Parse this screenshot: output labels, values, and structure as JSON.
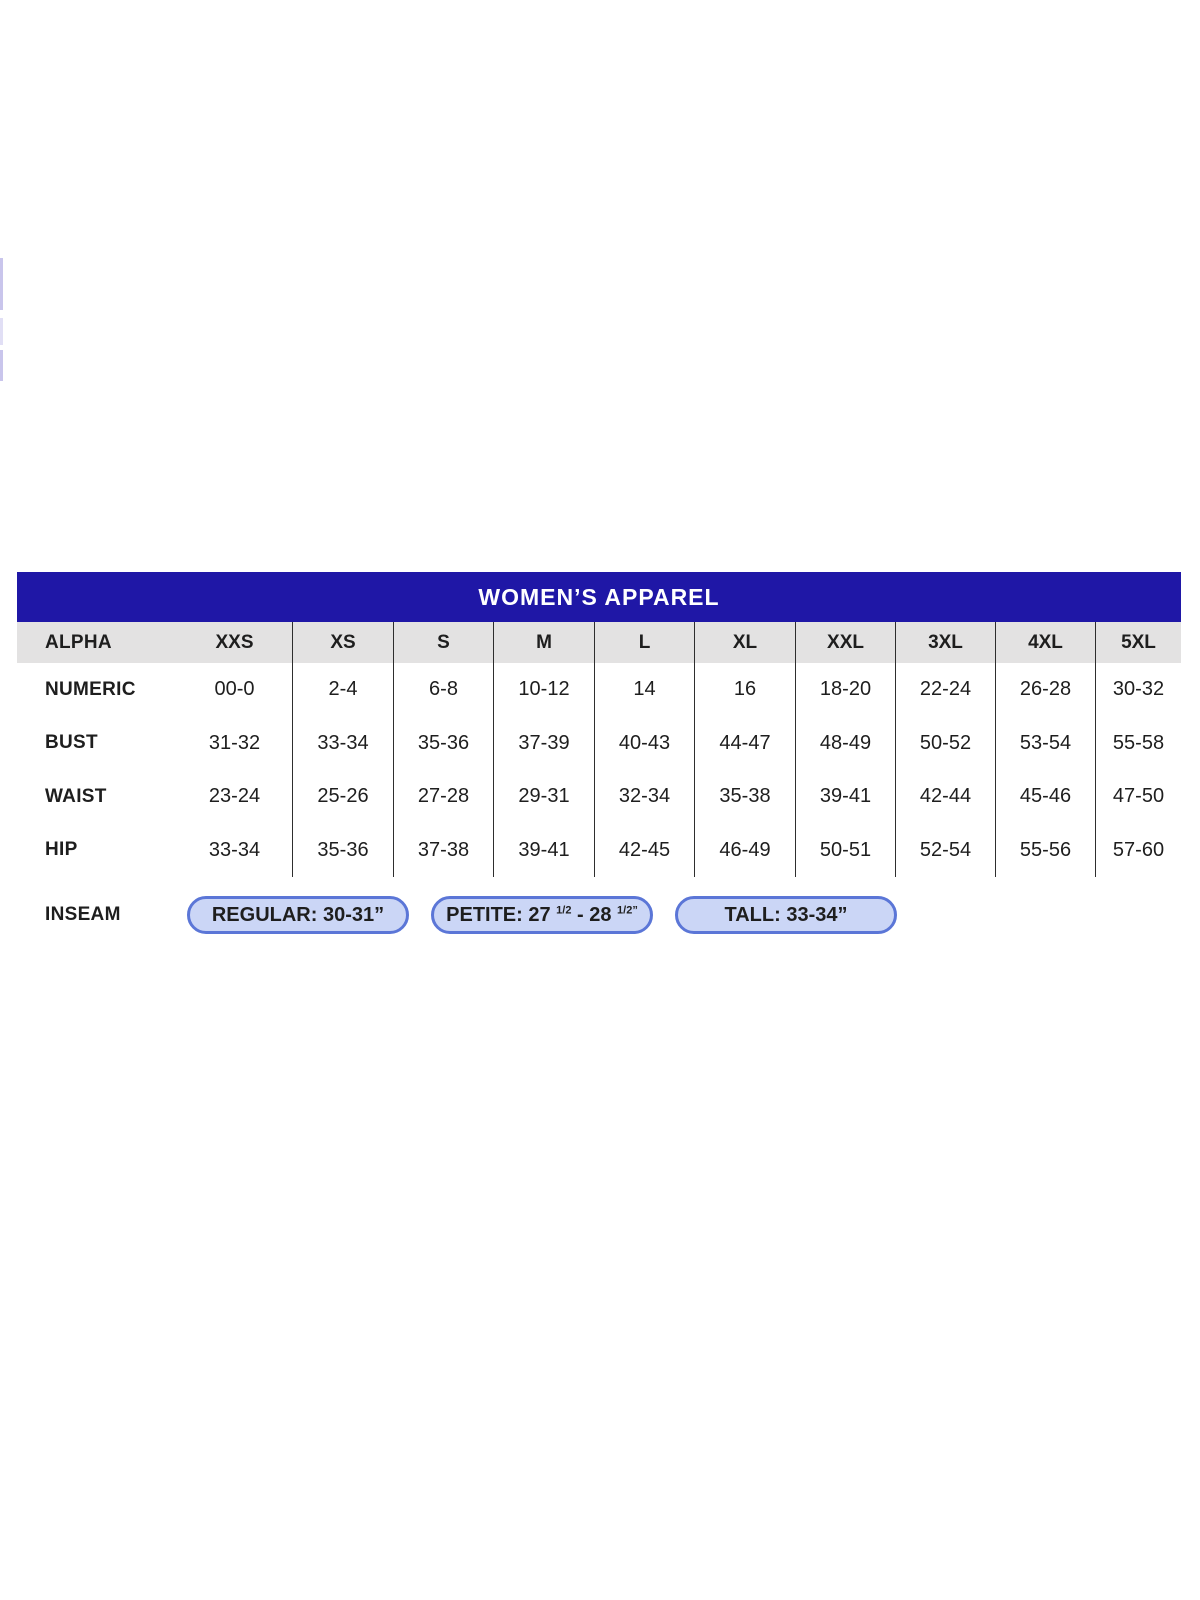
{
  "colors": {
    "title_bar_bg": "#1F17A6",
    "title_text": "#FFFFFF",
    "header_row_bg": "#E3E2E2",
    "grid_line": "#2E2E2E",
    "pill_fill": "#CBD6F6",
    "pill_border": "#5B76D7",
    "edge_artifact": "#C9C5EC"
  },
  "table": {
    "title": "WOMEN’S APPAREL",
    "columns": [
      "ALPHA",
      "XXS",
      "XS",
      "S",
      "M",
      "L",
      "XL",
      "XXL",
      "3XL",
      "4XL",
      "5XL"
    ],
    "rows": [
      {
        "label": "NUMERIC",
        "values": [
          "00-0",
          "2-4",
          "6-8",
          "10-12",
          "14",
          "16",
          "18-20",
          "22-24",
          "26-28",
          "30-32"
        ]
      },
      {
        "label": "BUST",
        "values": [
          "31-32",
          "33-34",
          "35-36",
          "37-39",
          "40-43",
          "44-47",
          "48-49",
          "50-52",
          "53-54",
          "55-58"
        ]
      },
      {
        "label": "WAIST",
        "values": [
          "23-24",
          "25-26",
          "27-28",
          "29-31",
          "32-34",
          "35-38",
          "39-41",
          "42-44",
          "45-46",
          "47-50"
        ]
      },
      {
        "label": "HIP",
        "values": [
          "33-34",
          "35-36",
          "37-38",
          "39-41",
          "42-45",
          "46-49",
          "50-51",
          "52-54",
          "55-56",
          "57-60"
        ]
      }
    ],
    "inseam": {
      "label": "INSEAM",
      "pills": [
        {
          "name": "regular",
          "segments": [
            {
              "text": "REGULAR: 30-31”"
            }
          ]
        },
        {
          "name": "petite",
          "segments": [
            {
              "text": "PETITE: 27 "
            },
            {
              "text": "1/2",
              "sup": true
            },
            {
              "text": " - 28 "
            },
            {
              "text": "1/2”",
              "sup": true
            }
          ]
        },
        {
          "name": "tall",
          "segments": [
            {
              "text": "TALL: 33-34”"
            }
          ]
        }
      ]
    }
  }
}
